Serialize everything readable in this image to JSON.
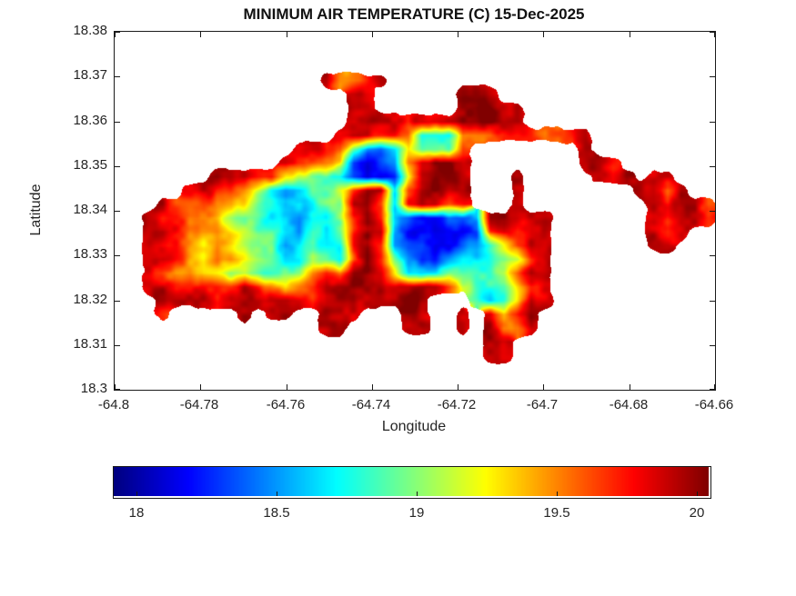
{
  "figure": {
    "background": "#ffffff",
    "axis_color": "#1a1a1a",
    "text_color": "#252525"
  },
  "chart_data": {
    "type": "heatmap",
    "title": "MINIMUM AIR TEMPERATURE (C) 15-Dec-2025",
    "xlabel": "Longitude",
    "ylabel": "Latitude",
    "x_range": [
      -64.8,
      -64.66
    ],
    "y_range": [
      18.3,
      18.38
    ],
    "grid_lines": false,
    "x_ticks": {
      "values": [
        -64.8,
        -64.78,
        -64.76,
        -64.74,
        -64.72,
        -64.7,
        -64.68,
        -64.66
      ],
      "labels": [
        "-64.8",
        "-64.78",
        "-64.76",
        "-64.74",
        "-64.72",
        "-64.7",
        "-64.68",
        "-64.66"
      ]
    },
    "y_ticks": {
      "values": [
        18.38,
        18.37,
        18.36,
        18.35,
        18.34,
        18.33,
        18.32,
        18.31,
        18.3
      ],
      "labels": [
        "18.38",
        "18.37",
        "18.36",
        "18.35",
        "18.34",
        "18.33",
        "18.32",
        "18.31",
        "18.3"
      ]
    },
    "colorbar": {
      "colormap": "jet",
      "orientation": "horizontal",
      "value_min": 17.92,
      "value_max": 20.04,
      "tick_values": [
        18,
        18.5,
        19,
        19.5,
        20
      ],
      "tick_labels": [
        "18",
        "18.5",
        "19",
        "19.5",
        "20"
      ]
    },
    "temperature_grid": {
      "cols": 44,
      "rows": 26,
      "encoding": "each char is one cell; '.' = ocean (no data); digit d = temp_C 18.1 + 0.2*d; 'a' = 20.0",
      "rows_data": [
        "............................................",
        "............................................",
        "............................................",
        "...............97789........................",
        ".................99......a99................",
        ".................a9......aaa99..............",
        ".................9a998999aaa99..............",
        "................9a98873337778887789.........",
        ".............9988422364448........9.........",
        "............98776101279aa9........998.......",
        ".......a998865443100169aa9...9.....989.99...",
        ".....9988753224458a938aa99...9........9979..",
        "...988877643233449a8389988...9.........98997",
        "..9887765443323358a8210011299999.......98998",
        "..9987776544324348a9200000189899.......989..",
        "..9887676544234338a8211001246899.......99...",
        "..9987677654335437a8421123344589............",
        "..9877665544447879a9633344445799............",
        "..998888898767899aa999aa85444689............",
        "...99998999999899a999aa...434699............",
        "...8.....9.99..999...99..9.9789.............",
        "...............99....99..9.9779.............",
        "...........................99...............",
        "...........................99...............",
        "............................................",
        "............................................"
      ]
    }
  }
}
